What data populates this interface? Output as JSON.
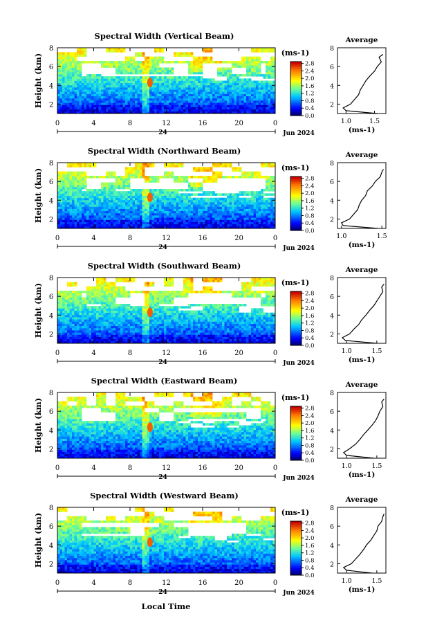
{
  "figure": {
    "shared_xlabel": "Local Time",
    "date_label": "Jun 2024",
    "day_label": "24",
    "unit_label_base": "(ms",
    "unit_label_exp": "-1",
    "unit_label_close": ")",
    "average_title": "Average",
    "height_axis_label": "Height (km)"
  },
  "chart_data": [
    {
      "type": "heatmap",
      "title": "Spectral Width (Vertical Beam)",
      "xlabel": "Local Time",
      "ylabel": "Height (km)",
      "x_ticks": [
        "0",
        "4",
        "8",
        "12",
        "16",
        "20",
        "0"
      ],
      "y_ticks": [
        "2",
        "4",
        "6",
        "8"
      ],
      "xlim": [
        0,
        24
      ],
      "ylim": [
        1,
        8
      ],
      "colorbar": {
        "label": "(ms-1)",
        "ticks": [
          "0.0",
          "0.4",
          "0.8",
          "1.2",
          "1.6",
          "2.0",
          "2.4",
          "2.8"
        ],
        "range": [
          0,
          2.9
        ]
      },
      "average_profile": {
        "title": "Average",
        "xlabel": "(ms-1)",
        "x_ticks": [
          "1.0",
          "1.5"
        ],
        "xlim": [
          0.85,
          1.7
        ],
        "ylim": [
          1,
          8
        ],
        "y_ticks": [
          "2",
          "4",
          "6",
          "8"
        ],
        "height_km": [
          1.0,
          1.3,
          1.6,
          2.0,
          2.5,
          3.0,
          3.5,
          4.0,
          4.5,
          5.0,
          5.5,
          6.0,
          6.5,
          7.0,
          7.3
        ],
        "width": [
          1.55,
          1.0,
          0.95,
          1.08,
          1.15,
          1.22,
          1.25,
          1.3,
          1.35,
          1.42,
          1.5,
          1.55,
          1.62,
          1.58,
          1.65
        ]
      }
    },
    {
      "type": "heatmap",
      "title": "Spectral Width (Northward Beam)",
      "xlabel": "Local Time",
      "ylabel": "Height (km)",
      "x_ticks": [
        "0",
        "4",
        "8",
        "12",
        "16",
        "20",
        "0"
      ],
      "y_ticks": [
        "2",
        "4",
        "6",
        "8"
      ],
      "xlim": [
        0,
        24
      ],
      "ylim": [
        1,
        8
      ],
      "colorbar": {
        "label": "(ms-1)",
        "ticks": [
          "0.0",
          "0.4",
          "0.8",
          "1.2",
          "1.6",
          "2.0",
          "2.4",
          "2.8"
        ],
        "range": [
          0,
          2.9
        ]
      },
      "average_profile": {
        "title": "Average",
        "xlabel": "(ms-1)",
        "x_ticks": [
          "1.0",
          "1.5"
        ],
        "xlim": [
          0.95,
          1.55
        ],
        "ylim": [
          1,
          8
        ],
        "y_ticks": [
          "2",
          "4",
          "6",
          "8"
        ],
        "height_km": [
          1.0,
          1.3,
          1.6,
          2.0,
          2.5,
          3.0,
          3.5,
          4.0,
          4.5,
          5.0,
          5.5,
          6.0,
          6.5,
          7.0,
          7.3
        ],
        "width": [
          1.45,
          1.02,
          1.0,
          1.1,
          1.15,
          1.2,
          1.22,
          1.25,
          1.3,
          1.32,
          1.38,
          1.42,
          1.48,
          1.5,
          1.52
        ]
      }
    },
    {
      "type": "heatmap",
      "title": "Spectral Width (Southward Beam)",
      "xlabel": "Local Time",
      "ylabel": "Height (km)",
      "x_ticks": [
        "0",
        "4",
        "8",
        "12",
        "16",
        "20",
        "0"
      ],
      "y_ticks": [
        "2",
        "4",
        "6",
        "8"
      ],
      "xlim": [
        0,
        24
      ],
      "ylim": [
        1,
        8
      ],
      "colorbar": {
        "label": "(ms-1)",
        "ticks": [
          "0.0",
          "0.4",
          "0.8",
          "1.2",
          "1.6",
          "2.0",
          "2.4",
          "2.8"
        ],
        "range": [
          0,
          2.9
        ]
      },
      "average_profile": {
        "title": "Average",
        "xlabel": "(ms-1)",
        "x_ticks": [
          "1.0",
          "1.5"
        ],
        "xlim": [
          0.85,
          1.65
        ],
        "ylim": [
          1,
          8
        ],
        "y_ticks": [
          "2",
          "4",
          "6",
          "8"
        ],
        "height_km": [
          1.0,
          1.3,
          1.6,
          2.0,
          2.5,
          3.0,
          3.5,
          4.0,
          4.5,
          5.0,
          5.5,
          6.0,
          6.5,
          7.0,
          7.3
        ],
        "width": [
          1.5,
          0.98,
          0.93,
          1.05,
          1.12,
          1.2,
          1.25,
          1.32,
          1.38,
          1.45,
          1.5,
          1.55,
          1.6,
          1.58,
          1.62
        ]
      }
    },
    {
      "type": "heatmap",
      "title": "Spectral Width (Eastward Beam)",
      "xlabel": "Local Time",
      "ylabel": "Height (km)",
      "x_ticks": [
        "0",
        "4",
        "8",
        "12",
        "16",
        "20",
        "0"
      ],
      "y_ticks": [
        "2",
        "4",
        "6",
        "8"
      ],
      "xlim": [
        0,
        24
      ],
      "ylim": [
        1,
        8
      ],
      "colorbar": {
        "label": "(ms-1)",
        "ticks": [
          "0.0",
          "0.4",
          "0.8",
          "1.2",
          "1.6",
          "2.0",
          "2.4",
          "2.8"
        ],
        "range": [
          0,
          2.9
        ]
      },
      "average_profile": {
        "title": "Average",
        "xlabel": "(ms-1)",
        "x_ticks": [
          "1.0",
          "1.5"
        ],
        "xlim": [
          0.85,
          1.65
        ],
        "ylim": [
          1,
          8
        ],
        "y_ticks": [
          "2",
          "4",
          "6",
          "8"
        ],
        "height_km": [
          1.0,
          1.3,
          1.6,
          2.0,
          2.5,
          3.0,
          3.5,
          4.0,
          4.5,
          5.0,
          5.5,
          6.0,
          6.5,
          7.0,
          7.3
        ],
        "width": [
          1.45,
          1.0,
          0.95,
          1.05,
          1.15,
          1.22,
          1.28,
          1.35,
          1.42,
          1.48,
          1.52,
          1.55,
          1.6,
          1.58,
          1.62
        ]
      }
    },
    {
      "type": "heatmap",
      "title": "Spectral Width (Westward Beam)",
      "xlabel": "Local Time",
      "ylabel": "Height (km)",
      "x_ticks": [
        "0",
        "4",
        "8",
        "12",
        "16",
        "20",
        "0"
      ],
      "y_ticks": [
        "2",
        "4",
        "6",
        "8"
      ],
      "xlim": [
        0,
        24
      ],
      "ylim": [
        1,
        8
      ],
      "colorbar": {
        "label": "(ms-1)",
        "ticks": [
          "0.0",
          "0.4",
          "0.8",
          "1.2",
          "1.6",
          "2.0",
          "2.4",
          "2.8"
        ],
        "range": [
          0,
          2.9
        ]
      },
      "average_profile": {
        "title": "Average",
        "xlabel": "(ms-1)",
        "x_ticks": [
          "1.0",
          "1.5"
        ],
        "xlim": [
          0.85,
          1.65
        ],
        "ylim": [
          1,
          8
        ],
        "y_ticks": [
          "2",
          "4",
          "6",
          "8"
        ],
        "height_km": [
          1.0,
          1.3,
          1.6,
          2.0,
          2.5,
          3.0,
          3.5,
          4.0,
          4.5,
          5.0,
          5.5,
          6.0,
          6.5,
          7.0,
          7.3
        ],
        "width": [
          1.42,
          1.0,
          0.95,
          1.08,
          1.15,
          1.22,
          1.28,
          1.33,
          1.4,
          1.45,
          1.5,
          1.52,
          1.58,
          1.6,
          1.62
        ]
      }
    }
  ]
}
